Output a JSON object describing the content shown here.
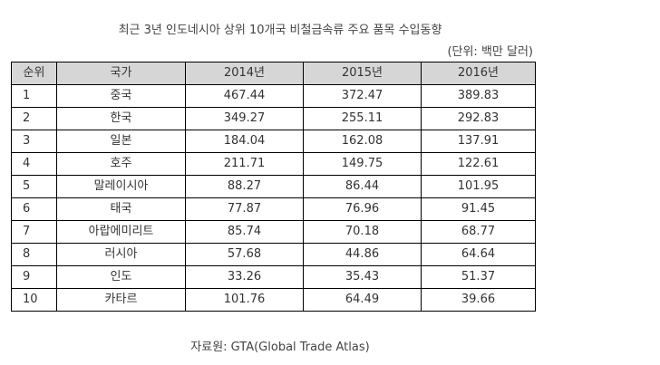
{
  "title": "최근 3년 인도네시아 상위 10개국 비철금속류 주요 품목 수입동향",
  "unit_note": "(단위: 백만 달러)",
  "table": {
    "headers": [
      "순위",
      "국가",
      "2014년",
      "2015년",
      "2016년"
    ],
    "rows": [
      {
        "rank": "1",
        "country": "중국",
        "y2014": "467.44",
        "y2015": "372.47",
        "y2016": "389.83"
      },
      {
        "rank": "2",
        "country": "한국",
        "y2014": "349.27",
        "y2015": "255.11",
        "y2016": "292.83"
      },
      {
        "rank": "3",
        "country": "일본",
        "y2014": "184.04",
        "y2015": "162.08",
        "y2016": "137.91"
      },
      {
        "rank": "4",
        "country": "호주",
        "y2014": "211.71",
        "y2015": "149.75",
        "y2016": "122.61"
      },
      {
        "rank": "5",
        "country": "말레이시아",
        "y2014": "88.27",
        "y2015": "86.44",
        "y2016": "101.95"
      },
      {
        "rank": "6",
        "country": "태국",
        "y2014": "77.87",
        "y2015": "76.96",
        "y2016": "91.45"
      },
      {
        "rank": "7",
        "country": "아랍에미리트",
        "y2014": "85.74",
        "y2015": "70.18",
        "y2016": "68.77"
      },
      {
        "rank": "8",
        "country": "러시아",
        "y2014": "57.68",
        "y2015": "44.86",
        "y2016": "64.64"
      },
      {
        "rank": "9",
        "country": "인도",
        "y2014": "33.26",
        "y2015": "35.43",
        "y2016": "51.37"
      },
      {
        "rank": "10",
        "country": "카타르",
        "y2014": "101.76",
        "y2015": "64.49",
        "y2016": "39.66"
      }
    ]
  },
  "source": "자료원: GTA(Global Trade Atlas)"
}
